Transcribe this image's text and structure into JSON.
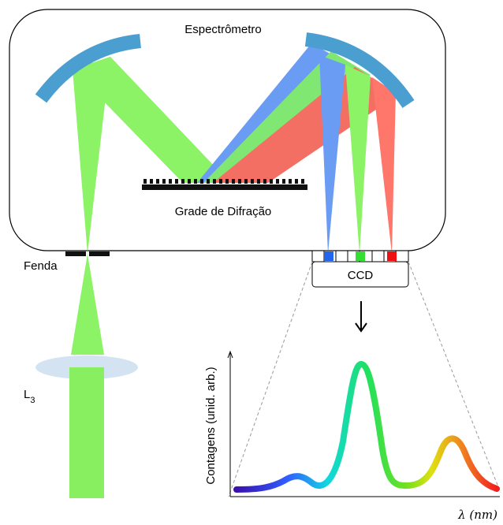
{
  "labels": {
    "spectrometer": "Espectrômetro",
    "grating": "Grade de Difração",
    "slit": "Fenda",
    "ccd": "CCD",
    "lens": {
      "main": "L",
      "sub": "3"
    },
    "y_axis": "Contagens (unid. arb.)",
    "x_axis": "λ (nm)"
  }
}
